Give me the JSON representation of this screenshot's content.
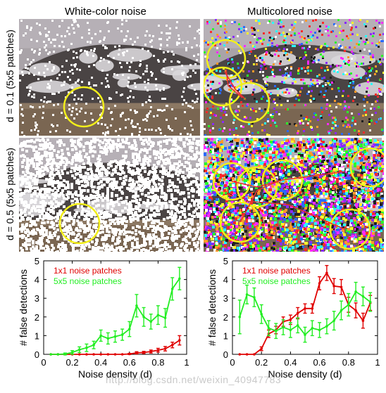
{
  "figure": {
    "columns": [
      "White-color noise",
      "Multicolored noise"
    ],
    "rows": [
      "d = 0.1 (5x5 patches)",
      "d = 0.5 (5x5 patches)"
    ],
    "watermark": "http://blog.csdn.net/weixin_40947783"
  },
  "colors": {
    "red": "#e00000",
    "green": "#22ee22",
    "circle": "#f2ef1a",
    "axis": "#000000"
  },
  "chart_data": [
    {
      "type": "line",
      "title": "",
      "xlabel": "Noise density (d)",
      "ylabel": "# false detections",
      "xlim": [
        0,
        1
      ],
      "ylim": [
        0,
        5
      ],
      "xticks": [
        "0",
        "0.2",
        "0.4",
        "0.6",
        "0.8",
        "1"
      ],
      "yticks": [
        "0",
        "1",
        "2",
        "3",
        "4",
        "5"
      ],
      "legend_position": "top-left",
      "series": [
        {
          "name": "1x1 noise patches",
          "color": "red",
          "x": [
            0.05,
            0.1,
            0.15,
            0.2,
            0.25,
            0.3,
            0.35,
            0.4,
            0.45,
            0.5,
            0.55,
            0.6,
            0.65,
            0.7,
            0.75,
            0.8,
            0.85,
            0.9,
            0.95
          ],
          "y": [
            0,
            0,
            0,
            0,
            0,
            0,
            0,
            0,
            0,
            0,
            0,
            0.02,
            0.08,
            0.1,
            0.15,
            0.22,
            0.3,
            0.5,
            0.75
          ],
          "err": [
            0,
            0,
            0,
            0,
            0,
            0,
            0,
            0,
            0,
            0,
            0,
            0.03,
            0.06,
            0.06,
            0.08,
            0.1,
            0.12,
            0.15,
            0.25
          ]
        },
        {
          "name": "5x5 noise patches",
          "color": "green",
          "x": [
            0.05,
            0.1,
            0.15,
            0.2,
            0.25,
            0.3,
            0.35,
            0.4,
            0.45,
            0.5,
            0.55,
            0.6,
            0.65,
            0.7,
            0.75,
            0.8,
            0.85,
            0.9,
            0.95
          ],
          "y": [
            0,
            0,
            0.02,
            0.1,
            0.25,
            0.35,
            0.5,
            1.0,
            0.85,
            0.95,
            1.05,
            1.35,
            2.6,
            2.0,
            1.75,
            2.1,
            1.95,
            3.5,
            4.05
          ],
          "err": [
            0,
            0,
            0.05,
            0.1,
            0.15,
            0.2,
            0.2,
            0.3,
            0.3,
            0.3,
            0.3,
            0.4,
            0.6,
            0.5,
            0.4,
            0.5,
            0.5,
            0.6,
            0.6
          ]
        }
      ]
    },
    {
      "type": "line",
      "title": "",
      "xlabel": "Noise density (d)",
      "ylabel": "# false detections",
      "xlim": [
        0,
        1
      ],
      "ylim": [
        0,
        5
      ],
      "xticks": [
        "0",
        "0.2",
        "0.4",
        "0.6",
        "0.8",
        "1"
      ],
      "yticks": [
        "0",
        "1",
        "2",
        "3",
        "4",
        "5"
      ],
      "legend_position": "top-left",
      "series": [
        {
          "name": "1x1 noise patches",
          "color": "red",
          "x": [
            0.05,
            0.1,
            0.15,
            0.2,
            0.25,
            0.3,
            0.35,
            0.4,
            0.45,
            0.5,
            0.55,
            0.6,
            0.65,
            0.7,
            0.75,
            0.8,
            0.85,
            0.9,
            0.95
          ],
          "y": [
            0,
            0,
            0,
            0.3,
            1.1,
            1.3,
            1.75,
            1.85,
            2.2,
            2.45,
            2.45,
            3.8,
            4.35,
            3.65,
            3.6,
            2.65,
            2.35,
            1.8,
            2.75
          ],
          "err": [
            0,
            0,
            0,
            0.1,
            0.2,
            0.2,
            0.25,
            0.25,
            0.3,
            0.25,
            0.25,
            0.35,
            0.4,
            0.4,
            0.4,
            0.4,
            0.4,
            0.4,
            0.4
          ]
        },
        {
          "name": "5x5 noise patches",
          "color": "green",
          "x": [
            0.05,
            0.1,
            0.15,
            0.2,
            0.25,
            0.3,
            0.35,
            0.4,
            0.45,
            0.5,
            0.55,
            0.6,
            0.65,
            0.7,
            0.75,
            0.8,
            0.85,
            0.9,
            0.95
          ],
          "y": [
            2.0,
            3.2,
            3.05,
            2.15,
            1.4,
            1.25,
            1.45,
            1.3,
            1.55,
            1.05,
            1.4,
            1.3,
            1.5,
            1.8,
            2.35,
            2.65,
            3.35,
            3.1,
            2.8
          ],
          "err": [
            0.9,
            0.5,
            0.5,
            0.5,
            0.4,
            0.4,
            0.4,
            0.4,
            0.4,
            0.4,
            0.4,
            0.4,
            0.4,
            0.5,
            0.5,
            0.6,
            0.5,
            0.5,
            0.5
          ]
        }
      ]
    }
  ]
}
